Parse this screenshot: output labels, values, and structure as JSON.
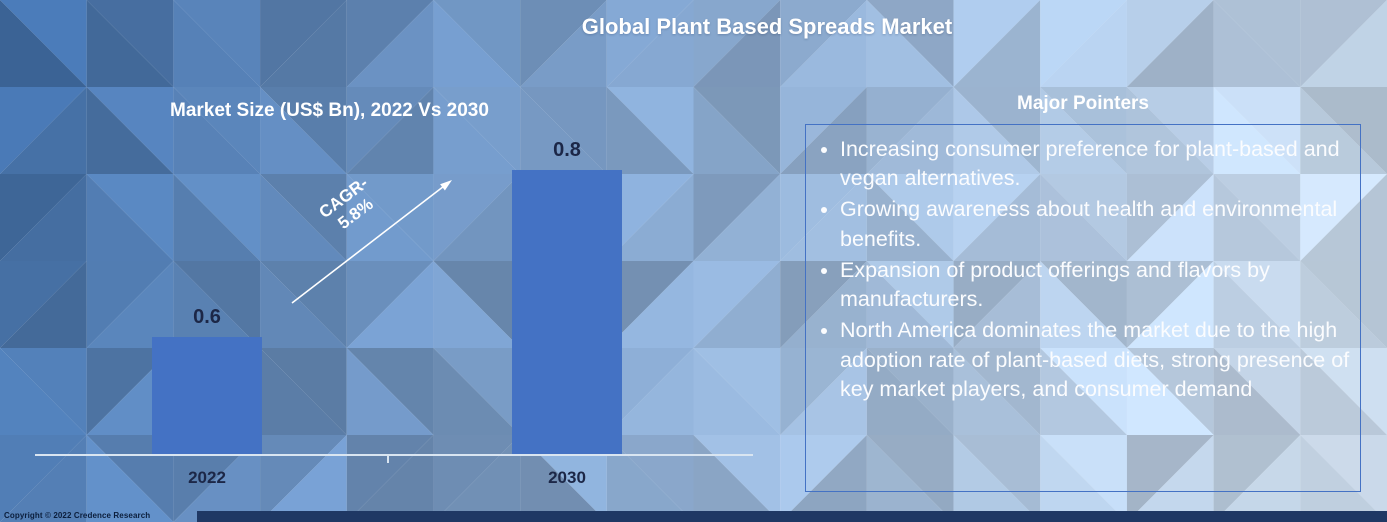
{
  "title": "Global Plant Based Spreads Market",
  "chart_data": {
    "type": "bar",
    "title": "Market Size (US$ Bn), 2022 Vs 2030",
    "categories": [
      "2022",
      "2030"
    ],
    "values": [
      0.6,
      0.8
    ],
    "ylim": [
      0,
      1
    ],
    "grid": false,
    "legend_position": "none",
    "annotation": {
      "cagr_line1": "CAGR-",
      "cagr_line2": "5.8%"
    }
  },
  "pointers": {
    "heading": "Major Pointers",
    "items": [
      "Increasing consumer preference for plant-based and vegan alternatives.",
      "Growing awareness about health and environmental benefits.",
      "Expansion of product offerings and flavors by manufacturers.",
      "North America dominates the market due to the high adoption rate of plant-based diets, strong presence of key market players, and consumer demand"
    ]
  },
  "footer": {
    "copyright": "Copyright © 2022 Credence Research"
  },
  "colors": {
    "bar": "#4472C4",
    "box_border": "#4472C4",
    "bottom_strip": "#1F3864",
    "axis_line": "#D9E5F1"
  }
}
